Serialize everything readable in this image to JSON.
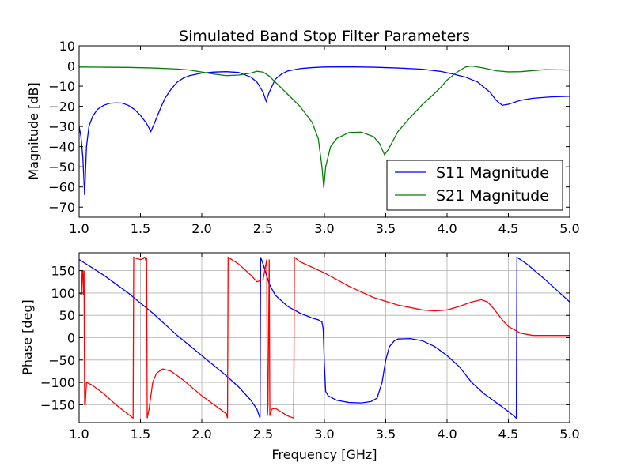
{
  "chart_data": [
    {
      "type": "line",
      "title": "Simulated Band Stop Filter Parameters",
      "xlabel": "",
      "ylabel": "Magnitude [dB]",
      "xlim": [
        1.0,
        5.0
      ],
      "ylim": [
        -75,
        10
      ],
      "xticks": [
        "1.0",
        "1.5",
        "2.0",
        "2.5",
        "3.0",
        "3.5",
        "4.0",
        "4.5",
        "5.0"
      ],
      "yticks": [
        "10",
        "0",
        "−10",
        "−20",
        "−30",
        "−40",
        "−50",
        "−60",
        "−70"
      ],
      "grid": false,
      "legend": "lower-right",
      "series": [
        {
          "name": "S11 Magnitude",
          "color": "#0000ff",
          "points": [
            [
              1.0,
              -30
            ],
            [
              1.015,
              -35
            ],
            [
              1.03,
              -45
            ],
            [
              1.045,
              -64
            ],
            [
              1.06,
              -40
            ],
            [
              1.08,
              -30
            ],
            [
              1.11,
              -25
            ],
            [
              1.15,
              -21.5
            ],
            [
              1.2,
              -19.5
            ],
            [
              1.25,
              -18.5
            ],
            [
              1.3,
              -18.3
            ],
            [
              1.35,
              -18.4
            ],
            [
              1.4,
              -19.5
            ],
            [
              1.45,
              -21.5
            ],
            [
              1.5,
              -24.5
            ],
            [
              1.55,
              -28.5
            ],
            [
              1.585,
              -32.5
            ],
            [
              1.62,
              -27.5
            ],
            [
              1.66,
              -21.5
            ],
            [
              1.7,
              -16
            ],
            [
              1.75,
              -11.5
            ],
            [
              1.8,
              -8
            ],
            [
              1.85,
              -6
            ],
            [
              1.9,
              -4.8
            ],
            [
              2.0,
              -3.5
            ],
            [
              2.1,
              -3
            ],
            [
              2.2,
              -2.8
            ],
            [
              2.3,
              -3.2
            ],
            [
              2.4,
              -5.5
            ],
            [
              2.45,
              -8
            ],
            [
              2.5,
              -13
            ],
            [
              2.525,
              -17.5
            ],
            [
              2.55,
              -13
            ],
            [
              2.6,
              -6.5
            ],
            [
              2.65,
              -4
            ],
            [
              2.7,
              -2.5
            ],
            [
              2.8,
              -1.3
            ],
            [
              2.9,
              -0.8
            ],
            [
              3.0,
              -0.5
            ],
            [
              3.2,
              -0.4
            ],
            [
              3.4,
              -0.6
            ],
            [
              3.6,
              -1
            ],
            [
              3.8,
              -1.6
            ],
            [
              3.95,
              -2.7
            ],
            [
              4.05,
              -4
            ],
            [
              4.15,
              -5.5
            ],
            [
              4.25,
              -8
            ],
            [
              4.35,
              -13
            ],
            [
              4.4,
              -17
            ],
            [
              4.45,
              -19.5
            ],
            [
              4.5,
              -19
            ],
            [
              4.6,
              -17
            ],
            [
              4.7,
              -16
            ],
            [
              4.85,
              -15.3
            ],
            [
              5.0,
              -15
            ]
          ]
        },
        {
          "name": "S21 Magnitude",
          "color": "#008000",
          "points": [
            [
              1.0,
              -0.5
            ],
            [
              1.2,
              -0.6
            ],
            [
              1.4,
              -0.7
            ],
            [
              1.6,
              -1
            ],
            [
              1.8,
              -1.5
            ],
            [
              1.9,
              -2
            ],
            [
              2.0,
              -3
            ],
            [
              2.1,
              -4
            ],
            [
              2.2,
              -4.8
            ],
            [
              2.3,
              -4.5
            ],
            [
              2.4,
              -3.5
            ],
            [
              2.45,
              -2.6
            ],
            [
              2.5,
              -3
            ],
            [
              2.55,
              -5
            ],
            [
              2.6,
              -8
            ],
            [
              2.7,
              -14
            ],
            [
              2.8,
              -20
            ],
            [
              2.9,
              -28
            ],
            [
              2.95,
              -36
            ],
            [
              2.98,
              -50
            ],
            [
              2.995,
              -60.5
            ],
            [
              3.01,
              -50
            ],
            [
              3.05,
              -40
            ],
            [
              3.1,
              -36
            ],
            [
              3.2,
              -33
            ],
            [
              3.3,
              -32.8
            ],
            [
              3.4,
              -35
            ],
            [
              3.45,
              -38.5
            ],
            [
              3.49,
              -44
            ],
            [
              3.52,
              -41.5
            ],
            [
              3.56,
              -37
            ],
            [
              3.6,
              -32.5
            ],
            [
              3.7,
              -25.5
            ],
            [
              3.8,
              -19
            ],
            [
              3.9,
              -13.5
            ],
            [
              3.95,
              -10.5
            ],
            [
              4.0,
              -7
            ],
            [
              4.05,
              -4.5
            ],
            [
              4.1,
              -2.3
            ],
            [
              4.15,
              -0.5
            ],
            [
              4.2,
              0
            ],
            [
              4.3,
              -1
            ],
            [
              4.4,
              -2.4
            ],
            [
              4.5,
              -2.9
            ],
            [
              4.6,
              -2.8
            ],
            [
              4.8,
              -1.8
            ],
            [
              5.0,
              -2
            ]
          ]
        }
      ]
    },
    {
      "type": "line",
      "title": "",
      "xlabel": "Frequency [GHz]",
      "ylabel": "Phase [deg]",
      "xlim": [
        1.0,
        5.0
      ],
      "ylim": [
        -190,
        190
      ],
      "xticks": [
        "1.0",
        "1.5",
        "2.0",
        "2.5",
        "3.0",
        "3.5",
        "4.0",
        "4.5",
        "5.0"
      ],
      "yticks": [
        "150",
        "100",
        "50",
        "0",
        "−50",
        "−100",
        "−150"
      ],
      "grid": true,
      "series": [
        {
          "color": "#0000ff",
          "points": [
            [
              1.0,
              175
            ],
            [
              1.2,
              140
            ],
            [
              1.4,
              100
            ],
            [
              1.6,
              55
            ],
            [
              1.8,
              5
            ],
            [
              2.0,
              -40
            ],
            [
              2.2,
              -85
            ],
            [
              2.3,
              -110
            ],
            [
              2.4,
              -140
            ],
            [
              2.45,
              -160
            ],
            [
              2.475,
              -180
            ],
            [
              2.48,
              180
            ],
            [
              2.5,
              165
            ],
            [
              2.55,
              120
            ],
            [
              2.6,
              95
            ],
            [
              2.7,
              70
            ],
            [
              2.8,
              55
            ],
            [
              2.9,
              44
            ],
            [
              2.95,
              40
            ],
            [
              2.98,
              35
            ],
            [
              2.99,
              20
            ],
            [
              3.0,
              -60
            ],
            [
              3.01,
              -120
            ],
            [
              3.03,
              -130
            ],
            [
              3.1,
              -140
            ],
            [
              3.2,
              -145
            ],
            [
              3.3,
              -146
            ],
            [
              3.38,
              -143
            ],
            [
              3.43,
              -135
            ],
            [
              3.47,
              -100
            ],
            [
              3.5,
              -50
            ],
            [
              3.53,
              -20
            ],
            [
              3.57,
              -7
            ],
            [
              3.6,
              -3
            ],
            [
              3.7,
              -2
            ],
            [
              3.8,
              -7
            ],
            [
              3.9,
              -20
            ],
            [
              4.0,
              -40
            ],
            [
              4.1,
              -65
            ],
            [
              4.2,
              -100
            ],
            [
              4.3,
              -125
            ],
            [
              4.4,
              -145
            ],
            [
              4.5,
              -165
            ],
            [
              4.565,
              -180
            ],
            [
              4.57,
              180
            ],
            [
              4.65,
              165
            ],
            [
              4.8,
              130
            ],
            [
              5.0,
              80
            ]
          ]
        },
        {
          "color": "#ff0000",
          "points": [
            [
              1.0,
              100
            ],
            [
              1.02,
              97
            ],
            [
              1.025,
              150
            ],
            [
              1.03,
              150
            ],
            [
              1.035,
              95
            ],
            [
              1.04,
              150
            ],
            [
              1.045,
              -150
            ],
            [
              1.05,
              -150
            ],
            [
              1.06,
              -100
            ],
            [
              1.1,
              -105
            ],
            [
              1.2,
              -125
            ],
            [
              1.3,
              -150
            ],
            [
              1.44,
              -180
            ],
            [
              1.445,
              180
            ],
            [
              1.47,
              177
            ],
            [
              1.5,
              175
            ],
            [
              1.525,
              177
            ],
            [
              1.53,
              180
            ],
            [
              1.535,
              180
            ],
            [
              1.545,
              172
            ],
            [
              1.55,
              180
            ],
            [
              1.555,
              -180
            ],
            [
              1.57,
              -160
            ],
            [
              1.6,
              -100
            ],
            [
              1.63,
              -80
            ],
            [
              1.68,
              -70
            ],
            [
              1.75,
              -75
            ],
            [
              1.85,
              -95
            ],
            [
              2.0,
              -130
            ],
            [
              2.1,
              -150
            ],
            [
              2.2,
              -170
            ],
            [
              2.21,
              -180
            ],
            [
              2.215,
              180
            ],
            [
              2.3,
              165
            ],
            [
              2.4,
              140
            ],
            [
              2.45,
              125
            ],
            [
              2.5,
              130
            ],
            [
              2.53,
              175
            ],
            [
              2.535,
              -175
            ],
            [
              2.54,
              -150
            ],
            [
              2.55,
              175
            ],
            [
              2.555,
              -175
            ],
            [
              2.57,
              -160
            ],
            [
              2.6,
              -158
            ],
            [
              2.7,
              -175
            ],
            [
              2.75,
              -180
            ],
            [
              2.755,
              180
            ],
            [
              2.8,
              170
            ],
            [
              3.0,
              145
            ],
            [
              3.2,
              115
            ],
            [
              3.4,
              90
            ],
            [
              3.6,
              73
            ],
            [
              3.8,
              62
            ],
            [
              3.9,
              60
            ],
            [
              4.0,
              62
            ],
            [
              4.1,
              70
            ],
            [
              4.2,
              80
            ],
            [
              4.28,
              85
            ],
            [
              4.33,
              80
            ],
            [
              4.38,
              65
            ],
            [
              4.45,
              40
            ],
            [
              4.5,
              25
            ],
            [
              4.6,
              10
            ],
            [
              4.7,
              5
            ],
            [
              5.0,
              5
            ]
          ]
        }
      ]
    }
  ]
}
